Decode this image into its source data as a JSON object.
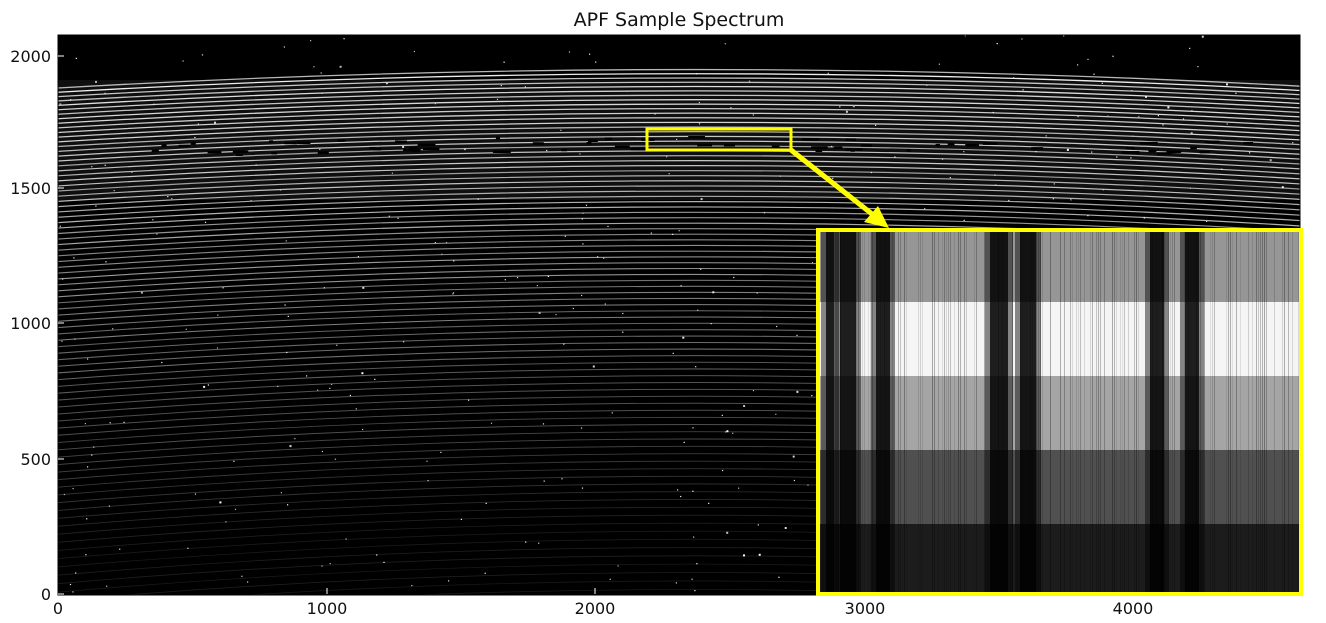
{
  "figure": {
    "title": "APF Sample Spectrum",
    "y_ticks": [
      "0",
      "500",
      "1000",
      "1500",
      "2000"
    ],
    "x_ticks": [
      "0",
      "1000",
      "2000",
      "3000",
      "4000"
    ],
    "highlight_color": "#ffff00",
    "background_color": "#000000"
  }
}
